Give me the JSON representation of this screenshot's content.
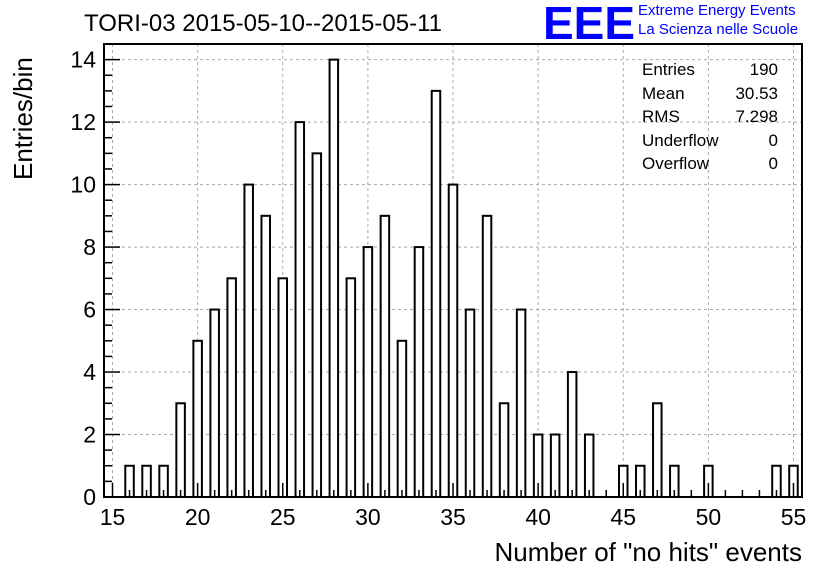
{
  "title": "TORI-03 2015-05-10--2015-05-11",
  "brand": {
    "logo_text": "EEE",
    "line1": "Extreme Energy Events",
    "line2": "La Scienza nelle Scuole",
    "color": "#0000ff"
  },
  "stats": [
    {
      "label": "Entries",
      "value": "190"
    },
    {
      "label": "Mean",
      "value": "30.53"
    },
    {
      "label": "RMS",
      "value": "7.298"
    },
    {
      "label": "Underflow",
      "value": "0"
    },
    {
      "label": "Overflow",
      "value": "0"
    }
  ],
  "chart_data": {
    "type": "bar",
    "title": "TORI-03 2015-05-10--2015-05-11",
    "xlabel": "Number of \"no hits\" events",
    "ylabel": "Entries/bin",
    "xlim": [
      14.5,
      55.5
    ],
    "ylim": [
      0,
      14.5
    ],
    "bin_width": 0.5,
    "xticks": [
      15,
      20,
      25,
      30,
      35,
      40,
      45,
      50,
      55
    ],
    "yticks": [
      0,
      2,
      4,
      6,
      8,
      10,
      12,
      14
    ],
    "grid": true,
    "legend": "top-right stats box",
    "bins": [
      {
        "x": 16,
        "value": 1
      },
      {
        "x": 17,
        "value": 1
      },
      {
        "x": 18,
        "value": 1
      },
      {
        "x": 19,
        "value": 3
      },
      {
        "x": 20,
        "value": 5
      },
      {
        "x": 21,
        "value": 6
      },
      {
        "x": 22,
        "value": 7
      },
      {
        "x": 23,
        "value": 10
      },
      {
        "x": 24,
        "value": 9
      },
      {
        "x": 25,
        "value": 7
      },
      {
        "x": 26,
        "value": 12
      },
      {
        "x": 27,
        "value": 11
      },
      {
        "x": 28,
        "value": 14
      },
      {
        "x": 29,
        "value": 7
      },
      {
        "x": 30,
        "value": 8
      },
      {
        "x": 31,
        "value": 9
      },
      {
        "x": 32,
        "value": 5
      },
      {
        "x": 33,
        "value": 8
      },
      {
        "x": 34,
        "value": 13
      },
      {
        "x": 35,
        "value": 10
      },
      {
        "x": 36,
        "value": 6
      },
      {
        "x": 37,
        "value": 9
      },
      {
        "x": 38,
        "value": 3
      },
      {
        "x": 39,
        "value": 6
      },
      {
        "x": 40,
        "value": 2
      },
      {
        "x": 41,
        "value": 2
      },
      {
        "x": 42,
        "value": 4
      },
      {
        "x": 43,
        "value": 2
      },
      {
        "x": 45,
        "value": 1
      },
      {
        "x": 46,
        "value": 1
      },
      {
        "x": 47,
        "value": 3
      },
      {
        "x": 48,
        "value": 1
      },
      {
        "x": 50,
        "value": 1
      },
      {
        "x": 54,
        "value": 1
      },
      {
        "x": 55,
        "value": 1
      }
    ],
    "colors": {
      "bar_fill": "#ffffff",
      "bar_stroke": "#000000",
      "grid": "#aaaaaa"
    }
  }
}
